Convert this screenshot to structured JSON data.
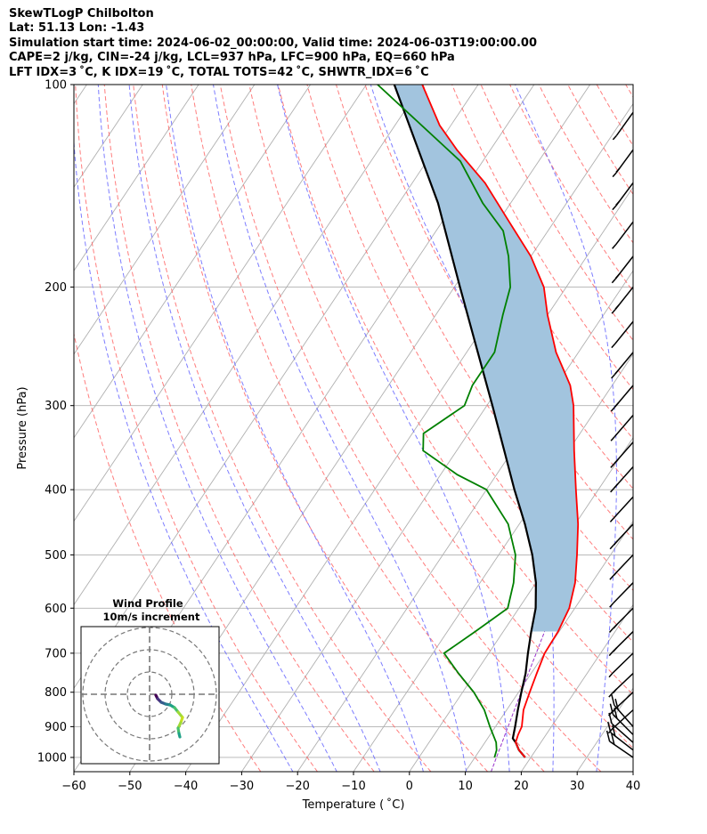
{
  "header": {
    "line1": "SkewTLogP Chilbolton",
    "line2": "Lat: 51.13   Lon: -1.43",
    "line3": "Simulation start time: 2024-06-02_00:00:00, Valid time: 2024-06-03T19:00:00.00",
    "line4": "CAPE=2 j/kg, CIN=-24 j/kg, LCL=937 hPa, LFC=900 hPa, EQ=660 hPa",
    "line5": "LFT IDX=3 ˚C, K IDX=19 ˚C, TOTAL TOTS=42 ˚C, SHWTR_IDX=6 ˚C"
  },
  "chart_data": {
    "type": "skewt",
    "xlabel": "Temperature ( ˚C)",
    "ylabel": "Pressure (hPa)",
    "xlim": [
      -60,
      40
    ],
    "ylim_hpa": [
      1050,
      100
    ],
    "x_ticks": [
      "−60",
      "−50",
      "−40",
      "−30",
      "−20",
      "−10",
      "0",
      "10",
      "20",
      "30",
      "40"
    ],
    "y_ticks": [
      "100",
      "200",
      "300",
      "400",
      "500",
      "600",
      "700",
      "800",
      "900",
      "1000"
    ],
    "grid": true,
    "colors": {
      "temperature": "#ff0000",
      "dewpoint": "#008000",
      "parcel": "#000000",
      "cape_fill": "#a2c4de",
      "dry_adiabat": "#ff6666",
      "moist_adiabat": "#6666ff",
      "mixing_ratio": "#9933cc",
      "isotherm": "#aaaaaa"
    },
    "temperature": [
      [
        1000,
        19
      ],
      [
        975,
        17
      ],
      [
        950,
        15.5
      ],
      [
        925,
        15
      ],
      [
        900,
        14.7
      ],
      [
        850,
        13
      ],
      [
        800,
        12
      ],
      [
        750,
        11
      ],
      [
        700,
        10
      ],
      [
        650,
        9.8
      ],
      [
        600,
        9
      ],
      [
        550,
        7
      ],
      [
        500,
        4
      ],
      [
        450,
        0.5
      ],
      [
        400,
        -4
      ],
      [
        350,
        -9
      ],
      [
        300,
        -14.5
      ],
      [
        280,
        -17.5
      ],
      [
        250,
        -24
      ],
      [
        220,
        -30
      ],
      [
        200,
        -34
      ],
      [
        180,
        -40
      ],
      [
        160,
        -48
      ],
      [
        140,
        -57
      ],
      [
        125,
        -66
      ],
      [
        115,
        -72
      ],
      [
        100,
        -80
      ]
    ],
    "dewpoint": [
      [
        1000,
        13.5
      ],
      [
        975,
        13
      ],
      [
        950,
        12
      ],
      [
        900,
        9
      ],
      [
        850,
        6
      ],
      [
        800,
        2
      ],
      [
        750,
        -3
      ],
      [
        700,
        -8
      ],
      [
        650,
        -5
      ],
      [
        600,
        -2
      ],
      [
        550,
        -4
      ],
      [
        500,
        -7
      ],
      [
        450,
        -12
      ],
      [
        400,
        -20
      ],
      [
        380,
        -27
      ],
      [
        350,
        -36
      ],
      [
        330,
        -38
      ],
      [
        300,
        -34
      ],
      [
        280,
        -35
      ],
      [
        250,
        -35
      ],
      [
        220,
        -38
      ],
      [
        200,
        -40
      ],
      [
        180,
        -44
      ],
      [
        165,
        -48
      ],
      [
        150,
        -55
      ],
      [
        130,
        -64
      ],
      [
        100,
        -88
      ]
    ],
    "parcel": [
      [
        1000,
        19
      ],
      [
        975,
        17
      ],
      [
        950,
        15.5
      ],
      [
        937,
        14.5
      ],
      [
        900,
        13.5
      ],
      [
        850,
        12
      ],
      [
        800,
        10.5
      ],
      [
        750,
        9
      ],
      [
        700,
        7
      ],
      [
        650,
        5
      ],
      [
        600,
        3
      ],
      [
        550,
        0
      ],
      [
        500,
        -4
      ],
      [
        450,
        -9
      ],
      [
        400,
        -15
      ],
      [
        350,
        -21.5
      ],
      [
        300,
        -29
      ],
      [
        250,
        -38
      ],
      [
        200,
        -49
      ],
      [
        150,
        -63
      ],
      [
        100,
        -85
      ]
    ],
    "wind_profile": {
      "title": "Wind Profile",
      "subtitle": "10m/s increment"
    }
  }
}
